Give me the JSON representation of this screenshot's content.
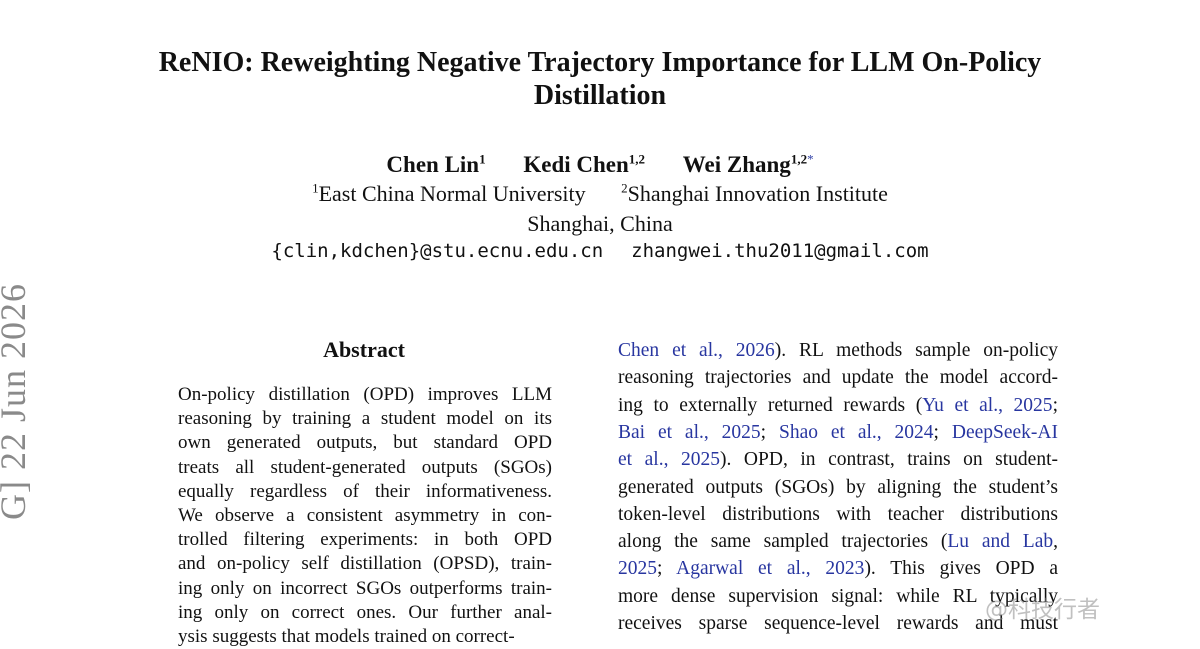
{
  "title_lines": [
    "ReNIO: Reweighting Negative Trajectory Importance for LLM On-Policy",
    "Distillation"
  ],
  "authors": [
    {
      "name": "Chen Lin",
      "sup": "1",
      "star": ""
    },
    {
      "name": "Kedi Chen",
      "sup": "1,2",
      "star": ""
    },
    {
      "name": "Wei Zhang",
      "sup": "1,2",
      "star": "*"
    }
  ],
  "affiliations": [
    {
      "sup": "1",
      "name": "East China Normal University"
    },
    {
      "sup": "2",
      "name": "Shanghai Innovation Institute"
    }
  ],
  "location": "Shanghai, China",
  "emails": [
    "{clin,kdchen}@stu.ecnu.edu.cn",
    "zhangwei.thu2011@gmail.com"
  ],
  "arxiv_stamp": "G]   22 Jun 2026",
  "abstract": {
    "heading": "Abstract",
    "lines": [
      "On-policy distillation (OPD) improves LLM",
      "reasoning by training a student model on its",
      "own generated outputs, but standard OPD",
      "treats all student-generated outputs (SGOs)",
      "equally regardless of their informativeness.",
      "We observe a consistent asymmetry in con-",
      "trolled filtering experiments: in both OPD",
      "and on-policy self distillation (OPSD), train-",
      "ing only on incorrect SGOs outperforms train-",
      "ing only on correct ones. Our further anal-",
      "ysis suggests that models trained on correct-"
    ]
  },
  "right_column": {
    "lines": [
      [
        {
          "t": "Chen et al., 2026",
          "c": true
        },
        {
          "t": "). RL methods sample on-policy",
          "c": false
        }
      ],
      [
        {
          "t": "reasoning trajectories and update the model accord-",
          "c": false
        }
      ],
      [
        {
          "t": "ing to externally returned rewards (",
          "c": false
        },
        {
          "t": "Yu et al., 2025",
          "c": true
        },
        {
          "t": ";",
          "c": false
        }
      ],
      [
        {
          "t": "Bai et al., 2025",
          "c": true
        },
        {
          "t": "; ",
          "c": false
        },
        {
          "t": "Shao et al., 2024",
          "c": true
        },
        {
          "t": "; ",
          "c": false
        },
        {
          "t": "DeepSeek-AI",
          "c": true
        }
      ],
      [
        {
          "t": "et al., 2025",
          "c": true
        },
        {
          "t": "). OPD, in contrast, trains on student-",
          "c": false
        }
      ],
      [
        {
          "t": "generated outputs (SGOs) by aligning the student’s",
          "c": false
        }
      ],
      [
        {
          "t": "token-level distributions with teacher distributions",
          "c": false
        }
      ],
      [
        {
          "t": "along the same sampled trajectories (",
          "c": false
        },
        {
          "t": "Lu and Lab",
          "c": true
        },
        {
          "t": ",",
          "c": false
        }
      ],
      [
        {
          "t": "2025",
          "c": true
        },
        {
          "t": "; ",
          "c": false
        },
        {
          "t": "Agarwal et al., 2023",
          "c": true
        },
        {
          "t": "). This gives OPD a",
          "c": false
        }
      ],
      [
        {
          "t": "more dense supervision signal: while RL typically",
          "c": false
        }
      ],
      [
        {
          "t": "receives sparse sequence-level rewards and must",
          "c": false
        }
      ]
    ]
  },
  "watermark": "@科技行者",
  "colors": {
    "citation": "#2836a0",
    "text": "#111111",
    "stamp": "#8a8a8a"
  }
}
